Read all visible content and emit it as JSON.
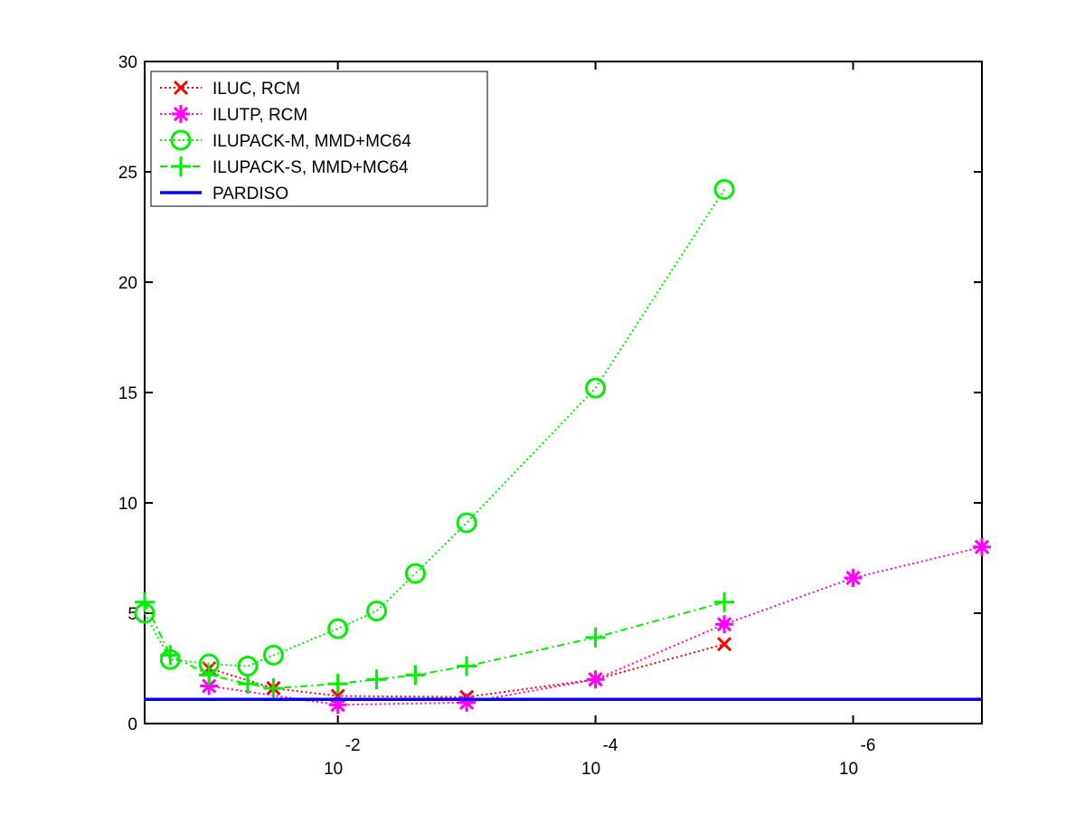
{
  "chart_data": {
    "type": "line",
    "title": "",
    "xlabel": "",
    "ylabel": "",
    "x_scale": "log",
    "x_reversed": true,
    "xlim": [
      0.316,
      1e-07
    ],
    "ylim": [
      0,
      30
    ],
    "yticks": [
      0,
      5,
      10,
      15,
      20,
      25,
      30
    ],
    "ytick_labels": [
      "0",
      "5",
      "10",
      "15",
      "20",
      "25",
      "30"
    ],
    "xticks": [
      {
        "value": 0.01,
        "base": "10",
        "exponent": "-2"
      },
      {
        "value": 0.0001,
        "base": "10",
        "exponent": "-4"
      },
      {
        "value": 1e-06,
        "base": "10",
        "exponent": "-6"
      }
    ],
    "grid": false,
    "legend_position": "top-left",
    "series": [
      {
        "name": "ILUC, RCM",
        "color": "#ff0000",
        "marker": "x",
        "linestyle": "dotted",
        "x": [
          0.1,
          0.0316,
          0.01,
          0.001,
          0.0001,
          1e-05
        ],
        "y": [
          2.5,
          1.6,
          1.25,
          1.2,
          2.0,
          3.6
        ]
      },
      {
        "name": "ILUTP, RCM",
        "color": "#ff00ff",
        "marker": "asterisk",
        "linestyle": "dotted",
        "x": [
          0.1,
          0.01,
          0.001,
          0.0001,
          1e-05,
          1e-06,
          1e-07
        ],
        "y": [
          1.7,
          0.85,
          0.95,
          2.0,
          4.5,
          6.6,
          8.0
        ]
      },
      {
        "name": "ILUPACK-M, MMD+MC64",
        "color": "#00ee00",
        "marker": "circle",
        "linestyle": "dotted",
        "x": [
          0.316,
          0.2,
          0.1,
          0.0501,
          0.0316,
          0.01,
          0.005,
          0.0025,
          0.001,
          0.0001,
          1e-05
        ],
        "y": [
          5.0,
          2.9,
          2.7,
          2.6,
          3.1,
          4.3,
          5.1,
          6.8,
          9.1,
          15.2,
          24.2
        ]
      },
      {
        "name": "ILUPACK-S, MMD+MC64",
        "color": "#00ee00",
        "marker": "plus",
        "linestyle": "dashdot",
        "x": [
          0.316,
          0.2,
          0.1,
          0.0501,
          0.0316,
          0.01,
          0.005,
          0.0025,
          0.001,
          0.0001,
          1e-05
        ],
        "y": [
          5.5,
          3.1,
          2.2,
          1.8,
          1.6,
          1.8,
          2.0,
          2.2,
          2.6,
          3.9,
          5.5
        ]
      },
      {
        "name": "PARDISO",
        "color": "#0000ff",
        "marker": "none",
        "linestyle": "solid",
        "x": [
          0.316,
          1e-07
        ],
        "y": [
          1.1,
          1.1
        ]
      }
    ]
  }
}
